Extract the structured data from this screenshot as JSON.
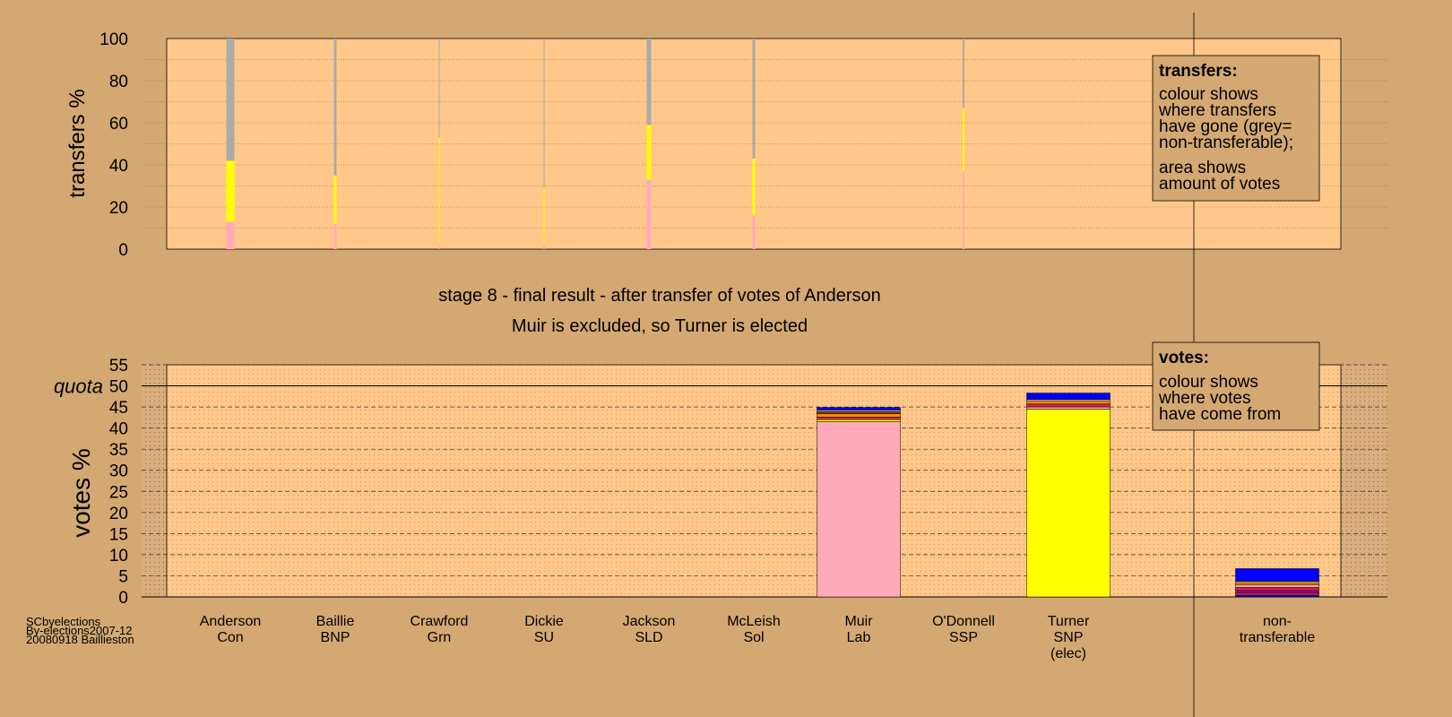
{
  "colors": {
    "background": "#d4a872",
    "panel": "#ffc88a",
    "grey": "#aaaaaa",
    "con": "#0000ff",
    "lab": "#ffaabb",
    "snp": "#ffff00",
    "sld": "#ff8800",
    "other": "#cc2244"
  },
  "chart_data": [
    {
      "type": "bar",
      "title": "transfers",
      "ylabel": "transfers %",
      "ylim": [
        0,
        100
      ],
      "yticks": [
        0,
        20,
        40,
        60,
        80,
        100
      ],
      "categories": [
        "Anderson",
        "Baillie",
        "Crawford",
        "Dickie",
        "Jackson",
        "McLeish",
        "O'Donnell"
      ],
      "series": [
        {
          "key": "lab",
          "color": "#ffaabb",
          "values": [
            13,
            12,
            3,
            2,
            33,
            16,
            37
          ]
        },
        {
          "key": "snp",
          "color": "#ffff00",
          "values": [
            29,
            23,
            50,
            27,
            26,
            27,
            30
          ]
        },
        {
          "key": "grey",
          "color": "#aaaaaa",
          "values": [
            58,
            65,
            47,
            71,
            41,
            57,
            33
          ]
        }
      ],
      "widths": [
        9,
        3,
        1,
        1,
        5,
        3,
        2
      ],
      "legend": {
        "title": "transfers:",
        "lines1": [
          "colour shows",
          "where transfers",
          "have gone (grey=",
          "non-transferable);"
        ],
        "lines2": [
          "area shows",
          "amount of votes"
        ]
      }
    },
    {
      "type": "bar",
      "title": "votes",
      "ylabel": "votes %",
      "ylim": [
        0,
        55
      ],
      "yticks": [
        0,
        5,
        10,
        15,
        20,
        25,
        30,
        35,
        40,
        45,
        50,
        55
      ],
      "quota": 50,
      "quota_label": "quota",
      "categories": [
        {
          "name": "Anderson",
          "party": "Con",
          "note": ""
        },
        {
          "name": "Baillie",
          "party": "BNP",
          "note": ""
        },
        {
          "name": "Crawford",
          "party": "Grn",
          "note": ""
        },
        {
          "name": "Dickie",
          "party": "SU",
          "note": ""
        },
        {
          "name": "Jackson",
          "party": "SLD",
          "note": ""
        },
        {
          "name": "McLeish",
          "party": "Sol",
          "note": ""
        },
        {
          "name": "Muir",
          "party": "Lab",
          "note": ""
        },
        {
          "name": "O'Donnell",
          "party": "SSP",
          "note": ""
        },
        {
          "name": "Turner",
          "party": "SNP",
          "note": "(elec)"
        },
        {
          "name": "non-",
          "party": "transferable",
          "note": ""
        }
      ],
      "stacks": [
        [],
        [],
        [],
        [],
        [],
        [],
        [
          {
            "color": "#ffaabb",
            "value": 41.5
          },
          {
            "color": "#ffff00",
            "value": 0.5
          },
          {
            "color": "#cc2244",
            "value": 0.6
          },
          {
            "color": "#ff8800",
            "value": 0.8
          },
          {
            "color": "#884400",
            "value": 0.5
          },
          {
            "color": "#ffd0a0",
            "value": 0.3
          },
          {
            "color": "#0000ff",
            "value": 0.7
          }
        ],
        [],
        [
          {
            "color": "#ffff00",
            "value": 44.5
          },
          {
            "color": "#ffaabb",
            "value": 0.5
          },
          {
            "color": "#cc2244",
            "value": 0.7
          },
          {
            "color": "#ff8800",
            "value": 0.8
          },
          {
            "color": "#ffd0a0",
            "value": 0.3
          },
          {
            "color": "#0000ff",
            "value": 1.5
          }
        ],
        [
          {
            "color": "#0000ff",
            "value": 0.4
          },
          {
            "color": "#cc2244",
            "value": 0.6
          },
          {
            "color": "#aa00aa",
            "value": 0.5
          },
          {
            "color": "#cc2244",
            "value": 0.8
          },
          {
            "color": "#ffaabb",
            "value": 0.6
          },
          {
            "color": "#ff8800",
            "value": 0.5
          },
          {
            "color": "#ffff00",
            "value": 0.3
          },
          {
            "color": "#0000ff",
            "value": 3.0
          }
        ]
      ],
      "legend": {
        "title": "votes:",
        "lines": [
          "colour shows",
          "where votes",
          "have come from"
        ]
      }
    }
  ],
  "stage": {
    "line1": "stage 8 - final result - after transfer of votes of Anderson",
    "line2": "Muir is excluded, so Turner is elected"
  },
  "footer": [
    "SCbyelections",
    "By-elections2007-12",
    "20080918 Baillieston"
  ]
}
